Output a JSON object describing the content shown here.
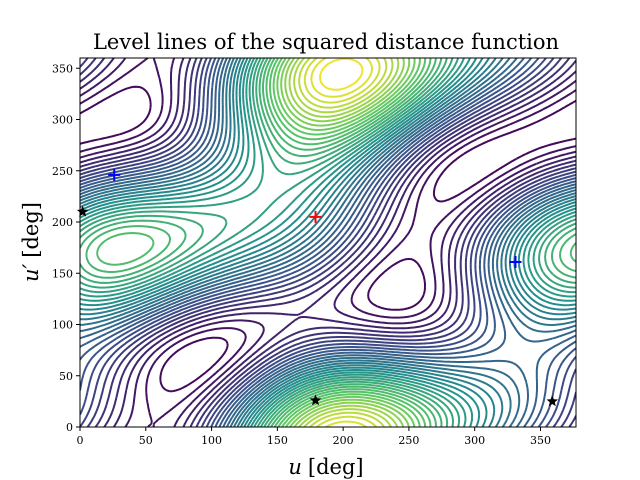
{
  "chart_data": {
    "type": "contour",
    "title": "Level lines of the squared distance function",
    "xlabel": "u [deg]",
    "ylabel": "u′ [deg]",
    "xlabel_main": "u",
    "ylabel_main": "u′",
    "label_unit": "[deg]",
    "xlim": [
      0,
      360
    ],
    "ylim": [
      0,
      360
    ],
    "xticks": [
      0,
      50,
      100,
      150,
      200,
      250,
      300,
      350
    ],
    "yticks": [
      0,
      50,
      100,
      150,
      200,
      250,
      300,
      350
    ],
    "grid": false,
    "colormap": [
      "#440154",
      "#3b528b",
      "#21918c",
      "#5ec962",
      "#fde725"
    ],
    "contour_levels": 38,
    "markers": {
      "maxima": [
        {
          "x": 179,
          "y": 205,
          "color": "#ff0000",
          "symbol": "plus"
        }
      ],
      "saddles": [
        {
          "x": 26,
          "y": 246,
          "color": "#0000ff",
          "symbol": "plus"
        },
        {
          "x": 331,
          "y": 161,
          "color": "#0000ff",
          "symbol": "plus"
        }
      ],
      "minima": [
        {
          "x": 2,
          "y": 210,
          "color": "#000000",
          "symbol": "star"
        },
        {
          "x": 179,
          "y": 26,
          "color": "#000000",
          "symbol": "star"
        },
        {
          "x": 359,
          "y": 25,
          "color": "#000000",
          "symbol": "star"
        }
      ]
    }
  }
}
